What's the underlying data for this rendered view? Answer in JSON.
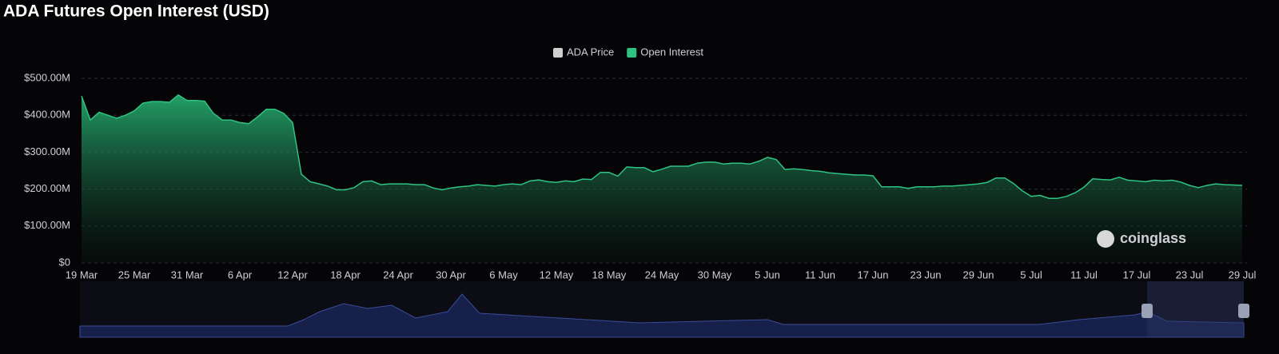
{
  "chart_data": {
    "type": "area",
    "title": "ADA Futures Open Interest (USD)",
    "watermark": "coinglass",
    "categories": [
      "19 Mar",
      null,
      null,
      null,
      null,
      null,
      "25 Mar",
      null,
      null,
      null,
      null,
      null,
      "31 Mar",
      null,
      null,
      null,
      null,
      null,
      "6 Apr",
      null,
      null,
      null,
      null,
      null,
      "12 Apr",
      null,
      null,
      null,
      null,
      null,
      "18 Apr",
      null,
      null,
      null,
      null,
      null,
      "24 Apr",
      null,
      null,
      null,
      null,
      null,
      "30 Apr",
      null,
      null,
      null,
      null,
      null,
      "6 May",
      null,
      null,
      null,
      null,
      null,
      "12 May",
      null,
      null,
      null,
      null,
      null,
      "18 May",
      null,
      null,
      null,
      null,
      null,
      "24 May",
      null,
      null,
      null,
      null,
      null,
      "30 May",
      null,
      null,
      null,
      null,
      null,
      "5 Jun",
      null,
      null,
      null,
      null,
      null,
      "11 Jun",
      null,
      null,
      null,
      null,
      null,
      "17 Jun",
      null,
      null,
      null,
      null,
      null,
      "23 Jun",
      null,
      null,
      null,
      null,
      null,
      "29 Jun",
      null,
      null,
      null,
      null,
      null,
      "5 Jul",
      null,
      null,
      null,
      null,
      null,
      "11 Jul",
      null,
      null,
      null,
      null,
      null,
      "17 Jul",
      null,
      null,
      null,
      null,
      null,
      "23 Jul",
      null,
      null,
      null,
      null,
      null,
      "29 Jul"
    ],
    "series": [
      {
        "name": "ADA Price",
        "color": "#d4d4d4",
        "visible": false
      },
      {
        "name": "Open Interest",
        "color": "#2fc383",
        "visible": true,
        "values": [
          452,
          387,
          408,
          400,
          392,
          400,
          412,
          433,
          437,
          437,
          435,
          455,
          440,
          440,
          438,
          405,
          387,
          387,
          380,
          377,
          395,
          416,
          416,
          405,
          380,
          240,
          220,
          214,
          208,
          198,
          198,
          204,
          220,
          222,
          212,
          214,
          214,
          214,
          212,
          212,
          203,
          198,
          203,
          206,
          208,
          212,
          210,
          208,
          212,
          214,
          212,
          222,
          225,
          220,
          218,
          222,
          220,
          227,
          226,
          245,
          245,
          235,
          260,
          258,
          258,
          247,
          254,
          262,
          262,
          262,
          270,
          273,
          273,
          268,
          270,
          270,
          268,
          275,
          286,
          280,
          253,
          255,
          253,
          250,
          248,
          244,
          242,
          240,
          238,
          238,
          236,
          206,
          206,
          206,
          202,
          206,
          206,
          206,
          208,
          208,
          210,
          212,
          214,
          218,
          230,
          230,
          215,
          195,
          180,
          183,
          175,
          175,
          180,
          190,
          205,
          228,
          226,
          225,
          232,
          224,
          222,
          220,
          224,
          222,
          224,
          219,
          210,
          204,
          210,
          214,
          212,
          211,
          210
        ]
      }
    ],
    "ylim": [
      0,
      500
    ],
    "yticks": [
      {
        "value": 0,
        "label": "$0"
      },
      {
        "value": 100,
        "label": "$100.00M"
      },
      {
        "value": 200,
        "label": "$200.00M"
      },
      {
        "value": 300,
        "label": "$300.00M"
      },
      {
        "value": 400,
        "label": "$400.00M"
      },
      {
        "value": 500,
        "label": "$500.00M"
      }
    ],
    "grid": true,
    "legend": "top"
  }
}
